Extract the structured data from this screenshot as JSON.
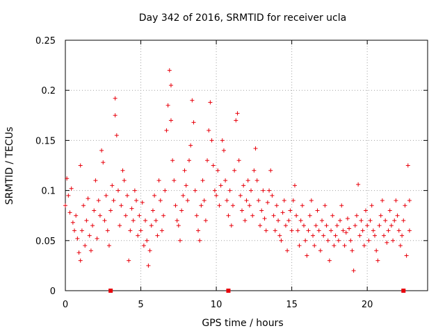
{
  "chart_data": {
    "type": "scatter",
    "title": "Day 342 of 2016, SRMTID for receiver ucla",
    "xlabel": "GPS time / hours",
    "ylabel": "SRMTID / TECUs",
    "xlim": [
      0,
      24
    ],
    "ylim": [
      0,
      0.25
    ],
    "xticks": [
      "0",
      "5",
      "10",
      "15",
      "20"
    ],
    "yticks": [
      "0",
      "0.05",
      "0.1",
      "0.15",
      "0.2",
      "0.25"
    ],
    "grid": true,
    "marker": "plus",
    "color": "#e8000b",
    "series": [
      {
        "name": "SRMTID",
        "points": [
          [
            0.0,
            0.085
          ],
          [
            0.1,
            0.112
          ],
          [
            0.2,
            0.095
          ],
          [
            0.3,
            0.078
          ],
          [
            0.4,
            0.102
          ],
          [
            0.5,
            0.068
          ],
          [
            0.6,
            0.06
          ],
          [
            0.7,
            0.075
          ],
          [
            0.8,
            0.052
          ],
          [
            0.9,
            0.038
          ],
          [
            1.0,
            0.03
          ],
          [
            1.0,
            0.125
          ],
          [
            1.1,
            0.06
          ],
          [
            1.2,
            0.085
          ],
          [
            1.3,
            0.045
          ],
          [
            1.4,
            0.07
          ],
          [
            1.5,
            0.092
          ],
          [
            1.6,
            0.055
          ],
          [
            1.7,
            0.04
          ],
          [
            1.8,
            0.065
          ],
          [
            1.9,
            0.08
          ],
          [
            2.0,
            0.11
          ],
          [
            2.1,
            0.052
          ],
          [
            2.2,
            0.09
          ],
          [
            2.3,
            0.075
          ],
          [
            2.4,
            0.14
          ],
          [
            2.5,
            0.128
          ],
          [
            2.6,
            0.07
          ],
          [
            2.7,
            0.095
          ],
          [
            2.8,
            0.06
          ],
          [
            2.9,
            0.045
          ],
          [
            3.0,
            0.08
          ],
          [
            3.1,
            0.105
          ],
          [
            3.2,
            0.09
          ],
          [
            3.3,
            0.192
          ],
          [
            3.3,
            0.175
          ],
          [
            3.4,
            0.155
          ],
          [
            3.5,
            0.1
          ],
          [
            3.6,
            0.065
          ],
          [
            3.7,
            0.085
          ],
          [
            3.8,
            0.12
          ],
          [
            3.9,
            0.11
          ],
          [
            4.0,
            0.075
          ],
          [
            4.1,
            0.095
          ],
          [
            4.2,
            0.03
          ],
          [
            4.3,
            0.06
          ],
          [
            4.4,
            0.082
          ],
          [
            4.5,
            0.07
          ],
          [
            4.6,
            0.1
          ],
          [
            4.7,
            0.09
          ],
          [
            4.8,
            0.055
          ],
          [
            4.9,
            0.075
          ],
          [
            5.0,
            0.06
          ],
          [
            5.1,
            0.088
          ],
          [
            5.2,
            0.045
          ],
          [
            5.3,
            0.07
          ],
          [
            5.4,
            0.05
          ],
          [
            5.5,
            0.025
          ],
          [
            5.6,
            0.04
          ],
          [
            5.7,
            0.065
          ],
          [
            5.8,
            0.08
          ],
          [
            5.9,
            0.095
          ],
          [
            6.0,
            0.07
          ],
          [
            6.1,
            0.055
          ],
          [
            6.2,
            0.11
          ],
          [
            6.3,
            0.09
          ],
          [
            6.4,
            0.06
          ],
          [
            6.5,
            0.075
          ],
          [
            6.6,
            0.1
          ],
          [
            6.7,
            0.16
          ],
          [
            6.8,
            0.185
          ],
          [
            6.9,
            0.22
          ],
          [
            7.0,
            0.205
          ],
          [
            7.0,
            0.17
          ],
          [
            7.1,
            0.13
          ],
          [
            7.2,
            0.11
          ],
          [
            7.3,
            0.085
          ],
          [
            7.4,
            0.07
          ],
          [
            7.5,
            0.065
          ],
          [
            7.6,
            0.05
          ],
          [
            7.7,
            0.08
          ],
          [
            7.8,
            0.095
          ],
          [
            7.9,
            0.12
          ],
          [
            8.0,
            0.105
          ],
          [
            8.1,
            0.09
          ],
          [
            8.2,
            0.13
          ],
          [
            8.3,
            0.145
          ],
          [
            8.4,
            0.19
          ],
          [
            8.5,
            0.168
          ],
          [
            8.6,
            0.1
          ],
          [
            8.7,
            0.075
          ],
          [
            8.8,
            0.06
          ],
          [
            8.9,
            0.05
          ],
          [
            9.0,
            0.085
          ],
          [
            9.1,
            0.11
          ],
          [
            9.2,
            0.09
          ],
          [
            9.3,
            0.07
          ],
          [
            9.4,
            0.13
          ],
          [
            9.5,
            0.16
          ],
          [
            9.6,
            0.188
          ],
          [
            9.7,
            0.15
          ],
          [
            9.8,
            0.125
          ],
          [
            9.9,
            0.1
          ],
          [
            10.0,
            0.095
          ],
          [
            10.1,
            0.12
          ],
          [
            10.2,
            0.085
          ],
          [
            10.3,
            0.105
          ],
          [
            10.4,
            0.15
          ],
          [
            10.5,
            0.14
          ],
          [
            10.6,
            0.11
          ],
          [
            10.7,
            0.09
          ],
          [
            10.8,
            0.075
          ],
          [
            10.9,
            0.1
          ],
          [
            11.0,
            0.065
          ],
          [
            11.1,
            0.085
          ],
          [
            11.2,
            0.12
          ],
          [
            11.3,
            0.17
          ],
          [
            11.4,
            0.177
          ],
          [
            11.5,
            0.13
          ],
          [
            11.6,
            0.095
          ],
          [
            11.7,
            0.08
          ],
          [
            11.8,
            0.105
          ],
          [
            11.9,
            0.07
          ],
          [
            12.0,
            0.09
          ],
          [
            12.1,
            0.11
          ],
          [
            12.2,
            0.085
          ],
          [
            12.3,
            0.1
          ],
          [
            12.4,
            0.075
          ],
          [
            12.5,
            0.12
          ],
          [
            12.6,
            0.142
          ],
          [
            12.7,
            0.11
          ],
          [
            12.8,
            0.09
          ],
          [
            12.9,
            0.065
          ],
          [
            13.0,
            0.08
          ],
          [
            13.1,
            0.1
          ],
          [
            13.2,
            0.072
          ],
          [
            13.3,
            0.06
          ],
          [
            13.4,
            0.088
          ],
          [
            13.5,
            0.1
          ],
          [
            13.6,
            0.12
          ],
          [
            13.7,
            0.095
          ],
          [
            13.8,
            0.075
          ],
          [
            13.9,
            0.06
          ],
          [
            14.0,
            0.085
          ],
          [
            14.1,
            0.07
          ],
          [
            14.2,
            0.055
          ],
          [
            14.3,
            0.05
          ],
          [
            14.4,
            0.078
          ],
          [
            14.5,
            0.09
          ],
          [
            14.6,
            0.065
          ],
          [
            14.7,
            0.04
          ],
          [
            14.8,
            0.07
          ],
          [
            14.9,
            0.08
          ],
          [
            15.0,
            0.06
          ],
          [
            15.1,
            0.09
          ],
          [
            15.2,
            0.105
          ],
          [
            15.3,
            0.075
          ],
          [
            15.4,
            0.06
          ],
          [
            15.5,
            0.045
          ],
          [
            15.6,
            0.07
          ],
          [
            15.7,
            0.085
          ],
          [
            15.8,
            0.065
          ],
          [
            15.9,
            0.05
          ],
          [
            16.0,
            0.035
          ],
          [
            16.1,
            0.06
          ],
          [
            16.2,
            0.075
          ],
          [
            16.3,
            0.09
          ],
          [
            16.4,
            0.055
          ],
          [
            16.5,
            0.045
          ],
          [
            16.6,
            0.065
          ],
          [
            16.7,
            0.08
          ],
          [
            16.8,
            0.06
          ],
          [
            16.9,
            0.04
          ],
          [
            17.0,
            0.07
          ],
          [
            17.1,
            0.055
          ],
          [
            17.2,
            0.085
          ],
          [
            17.3,
            0.065
          ],
          [
            17.4,
            0.05
          ],
          [
            17.5,
            0.03
          ],
          [
            17.6,
            0.06
          ],
          [
            17.7,
            0.075
          ],
          [
            17.8,
            0.045
          ],
          [
            17.9,
            0.055
          ],
          [
            18.0,
            0.065
          ],
          [
            18.1,
            0.05
          ],
          [
            18.2,
            0.07
          ],
          [
            18.3,
            0.085
          ],
          [
            18.4,
            0.06
          ],
          [
            18.5,
            0.045
          ],
          [
            18.6,
            0.058
          ],
          [
            18.7,
            0.072
          ],
          [
            18.8,
            0.062
          ],
          [
            18.9,
            0.05
          ],
          [
            19.0,
            0.04
          ],
          [
            19.1,
            0.02
          ],
          [
            19.2,
            0.065
          ],
          [
            19.3,
            0.075
          ],
          [
            19.4,
            0.106
          ],
          [
            19.5,
            0.055
          ],
          [
            19.6,
            0.07
          ],
          [
            19.7,
            0.06
          ],
          [
            19.8,
            0.045
          ],
          [
            19.9,
            0.08
          ],
          [
            20.0,
            0.065
          ],
          [
            20.1,
            0.05
          ],
          [
            20.2,
            0.07
          ],
          [
            20.3,
            0.085
          ],
          [
            20.4,
            0.06
          ],
          [
            20.5,
            0.055
          ],
          [
            20.6,
            0.04
          ],
          [
            20.7,
            0.03
          ],
          [
            20.8,
            0.065
          ],
          [
            20.9,
            0.075
          ],
          [
            21.0,
            0.09
          ],
          [
            21.1,
            0.055
          ],
          [
            21.2,
            0.07
          ],
          [
            21.3,
            0.048
          ],
          [
            21.4,
            0.06
          ],
          [
            21.5,
            0.08
          ],
          [
            21.6,
            0.065
          ],
          [
            21.7,
            0.05
          ],
          [
            21.8,
            0.07
          ],
          [
            21.9,
            0.09
          ],
          [
            22.0,
            0.075
          ],
          [
            22.1,
            0.06
          ],
          [
            22.2,
            0.045
          ],
          [
            22.3,
            0.055
          ],
          [
            22.4,
            0.07
          ],
          [
            22.5,
            0.085
          ],
          [
            22.6,
            0.035
          ],
          [
            22.7,
            0.125
          ],
          [
            22.8,
            0.06
          ],
          [
            22.8,
            0.09
          ]
        ]
      },
      {
        "name": "zero-markers",
        "marker": "square",
        "points": [
          [
            3.0,
            0
          ],
          [
            10.8,
            0
          ],
          [
            22.4,
            0
          ]
        ]
      }
    ]
  }
}
